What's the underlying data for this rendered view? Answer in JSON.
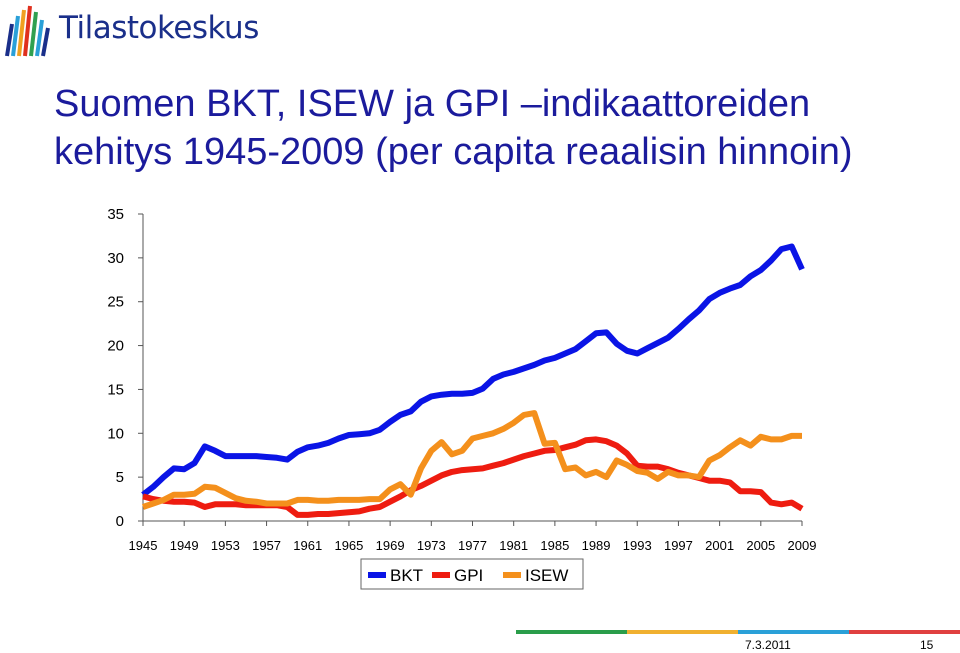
{
  "header": {
    "logo_text": "Tilastokeskus",
    "logo_colors": [
      "#1a2f8a",
      "#2aa0d8",
      "#f0a020",
      "#e0301e",
      "#30a050"
    ]
  },
  "slide": {
    "title_line1": "Suomen BKT, ISEW ja GPI –indikaattoreiden",
    "title_line2": "kehitys 1945-2009 (per capita reaalisin hinnoin)",
    "title_color": "#1b1b9c"
  },
  "footer": {
    "date": "7.3.2011",
    "page": "15",
    "bar_colors": [
      "#2a9d4a",
      "#f0b030",
      "#2aa0d8",
      "#e04040"
    ]
  },
  "chart_data": {
    "type": "line",
    "title": "",
    "xlabel": "",
    "ylabel": "",
    "xlim": [
      1945,
      2009
    ],
    "ylim": [
      0,
      35
    ],
    "yticks": [
      0,
      5,
      10,
      15,
      20,
      25,
      30,
      35
    ],
    "xticks": [
      1945,
      1949,
      1953,
      1957,
      1961,
      1965,
      1969,
      1973,
      1977,
      1981,
      1985,
      1989,
      1993,
      1997,
      2001,
      2005,
      2009
    ],
    "grid": false,
    "legend_position": "bottom",
    "x": [
      1945,
      1946,
      1947,
      1948,
      1949,
      1950,
      1951,
      1952,
      1953,
      1954,
      1955,
      1956,
      1957,
      1958,
      1959,
      1960,
      1961,
      1962,
      1963,
      1964,
      1965,
      1966,
      1967,
      1968,
      1969,
      1970,
      1971,
      1972,
      1973,
      1974,
      1975,
      1976,
      1977,
      1978,
      1979,
      1980,
      1981,
      1982,
      1983,
      1984,
      1985,
      1986,
      1987,
      1988,
      1989,
      1990,
      1991,
      1992,
      1993,
      1994,
      1995,
      1996,
      1997,
      1998,
      1999,
      2000,
      2001,
      2002,
      2003,
      2004,
      2005,
      2006,
      2007,
      2008,
      2009
    ],
    "series": [
      {
        "name": "BKT",
        "color": "#0a14e6",
        "values": [
          3.0,
          3.9,
          5.0,
          6.0,
          5.9,
          6.6,
          8.5,
          8.0,
          7.4,
          7.4,
          7.4,
          7.4,
          7.3,
          7.2,
          7.0,
          7.9,
          8.4,
          8.6,
          8.9,
          9.4,
          9.8,
          9.9,
          10.0,
          10.4,
          11.3,
          12.1,
          12.5,
          13.6,
          14.2,
          14.4,
          14.5,
          14.5,
          14.6,
          15.1,
          16.2,
          16.7,
          17.0,
          17.4,
          17.8,
          18.3,
          18.6,
          19.1,
          19.6,
          20.5,
          21.4,
          21.5,
          20.2,
          19.4,
          19.1,
          19.7,
          20.3,
          20.9,
          21.9,
          23.0,
          24.0,
          25.3,
          26.0,
          26.5,
          26.9,
          27.9,
          28.6,
          29.7,
          31.0,
          31.3,
          28.7
        ]
      },
      {
        "name": "GPI",
        "color": "#ee1c10",
        "values": [
          2.8,
          2.5,
          2.3,
          2.2,
          2.2,
          2.1,
          1.6,
          1.9,
          1.9,
          1.9,
          1.8,
          1.8,
          1.8,
          1.8,
          1.6,
          0.7,
          0.7,
          0.8,
          0.8,
          0.9,
          1.0,
          1.1,
          1.4,
          1.6,
          2.2,
          2.8,
          3.5,
          4.0,
          4.6,
          5.2,
          5.6,
          5.8,
          5.9,
          6.0,
          6.3,
          6.6,
          7.0,
          7.4,
          7.7,
          8.0,
          8.1,
          8.4,
          8.7,
          9.2,
          9.3,
          9.1,
          8.6,
          7.7,
          6.3,
          6.2,
          6.2,
          5.9,
          5.5,
          5.2,
          4.9,
          4.6,
          4.6,
          4.4,
          3.4,
          3.4,
          3.3,
          2.1,
          1.9,
          2.1,
          1.4
        ]
      },
      {
        "name": "ISEW",
        "color": "#f4901c",
        "values": [
          1.6,
          2.0,
          2.4,
          3.0,
          3.0,
          3.1,
          3.9,
          3.8,
          3.2,
          2.6,
          2.3,
          2.2,
          2.0,
          2.0,
          2.0,
          2.4,
          2.4,
          2.3,
          2.3,
          2.4,
          2.4,
          2.4,
          2.5,
          2.5,
          3.6,
          4.2,
          3.0,
          6.0,
          8.0,
          9.0,
          7.6,
          8.0,
          9.4,
          9.7,
          10.0,
          10.5,
          11.2,
          12.1,
          12.3,
          8.8,
          8.9,
          5.9,
          6.1,
          5.2,
          5.6,
          5.0,
          6.9,
          6.4,
          5.7,
          5.5,
          4.8,
          5.6,
          5.2,
          5.2,
          5.0,
          6.9,
          7.5,
          8.4,
          9.2,
          8.6,
          9.6,
          9.3,
          9.3,
          9.7,
          9.7
        ]
      }
    ]
  }
}
